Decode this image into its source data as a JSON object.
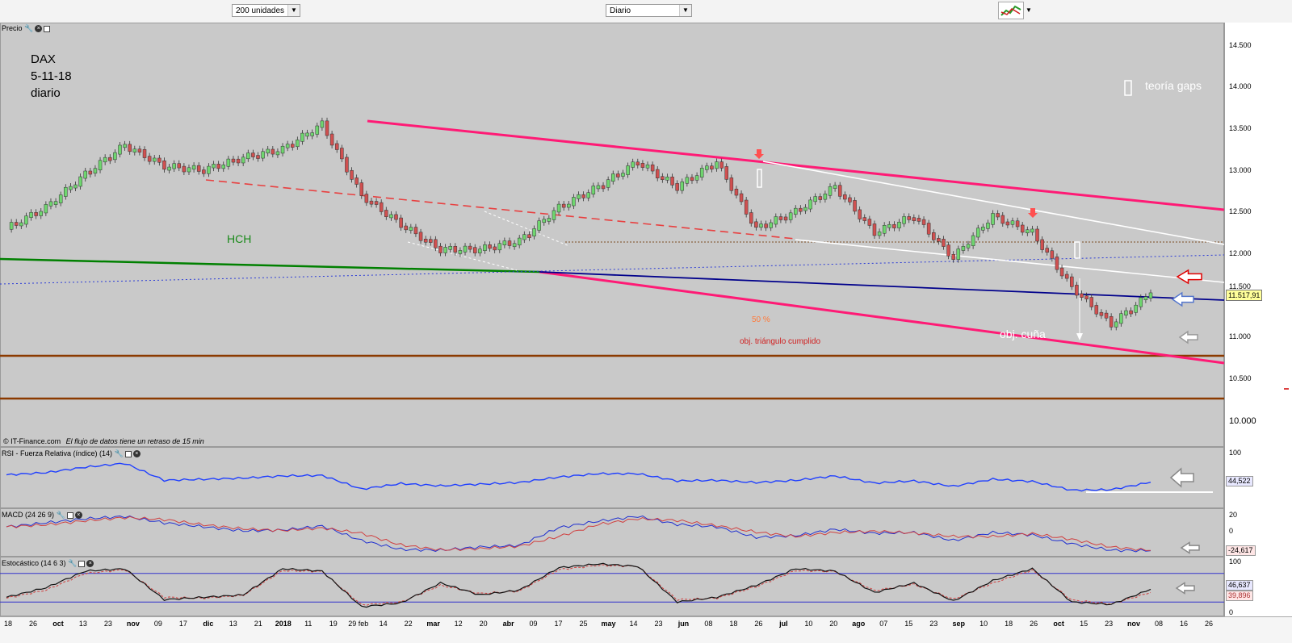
{
  "toolbar": {
    "units_select": "200 unidades",
    "period_select": "Diario"
  },
  "panels": {
    "price": {
      "title": "Precio",
      "ticks": [
        "14.500",
        "14.000",
        "13.500",
        "13.000",
        "12.500",
        "12.000",
        "11.500",
        "11.000",
        "10.500",
        "10.000"
      ],
      "current": "11.517,91"
    },
    "rsi": {
      "title": "RSI - Fuerza Relativa (índice) (14)",
      "ticks": [
        "100"
      ],
      "current": "44,522"
    },
    "macd": {
      "title": "MACD (24 26 9)",
      "ticks": [
        "20",
        "0"
      ],
      "current": "-24,617"
    },
    "stoch": {
      "title": "Estocástico (14 6 3)",
      "ticks": [
        "100",
        "0"
      ],
      "current_k": "46,637",
      "current_d": "39,896"
    }
  },
  "annotations": {
    "title_lines": [
      "DAX",
      "5-11-18",
      "diario"
    ],
    "hch": "HCH",
    "gaps": "teoría gaps",
    "fifty": "50 %",
    "triangle": "obj. triángulo cumplido",
    "wedge": "obj. cuña",
    "source": "© IT-Finance.com",
    "delay": "El flujo de datos tiene un retraso de 15 min"
  },
  "colors": {
    "channel": "#ff1a75",
    "neckline": "#008000",
    "support_blue": "#00008b",
    "dashed_red": "#e84040",
    "orange_lines": "#8b3a00",
    "rsi": "#1f3fff",
    "candle_up": "#6fd66f",
    "candle_down": "#d05050"
  },
  "x_axis": [
    "18",
    "26",
    "oct",
    "13",
    "23",
    "nov",
    "09",
    "17",
    "dic",
    "13",
    "21",
    "2018",
    "11",
    "19",
    "29 feb",
    "14",
    "22",
    "mar",
    "12",
    "20",
    "abr",
    "09",
    "17",
    "25",
    "may",
    "14",
    "23",
    "jun",
    "08",
    "18",
    "26",
    "jul",
    "10",
    "20",
    "ago",
    "07",
    "15",
    "23",
    "sep",
    "10",
    "18",
    "26",
    "oct",
    "15",
    "23",
    "nov",
    "08",
    "16",
    "26"
  ],
  "chart_data": {
    "type": "line",
    "title": "DAX",
    "subtitle": "5-11-18 diario",
    "xlabel": "",
    "ylabel": "",
    "ylim": [
      9800,
      14700
    ],
    "x": [
      "2017-09-18",
      "2017-10-02",
      "2017-10-16",
      "2017-11-01",
      "2017-11-17",
      "2017-12-01",
      "2017-12-18",
      "2018-01-02",
      "2018-01-23",
      "2018-02-05",
      "2018-02-20",
      "2018-03-05",
      "2018-03-20",
      "2018-04-02",
      "2018-04-20",
      "2018-05-02",
      "2018-05-22",
      "2018-06-05",
      "2018-06-14",
      "2018-06-28",
      "2018-07-10",
      "2018-07-26",
      "2018-08-10",
      "2018-08-27",
      "2018-09-10",
      "2018-09-20",
      "2018-10-01",
      "2018-10-11",
      "2018-10-26",
      "2018-11-05"
    ],
    "series": [
      {
        "values": [
          12300,
          12550,
          12950,
          13300,
          13050,
          13000,
          13150,
          13250,
          13550,
          12700,
          12350,
          12050,
          12050,
          12150,
          12550,
          12800,
          13100,
          12800,
          13100,
          12300,
          12500,
          12800,
          12250,
          12450,
          11950,
          12450,
          12250,
          11600,
          11150,
          11520
        ]
      },
      {
        "name": "RSI (14)",
        "values": [
          58,
          62,
          72,
          79,
          48,
          50,
          52,
          56,
          57,
          32,
          42,
          38,
          41,
          44,
          54,
          60,
          60,
          47,
          48,
          44,
          48,
          56,
          43,
          47,
          37,
          50,
          46,
          30,
          31,
          44.52
        ]
      },
      {
        "name": "MACD",
        "values": [
          5,
          10,
          15,
          18,
          10,
          5,
          0,
          1,
          6,
          -12,
          -23,
          -24,
          -20,
          -18,
          4,
          12,
          18,
          8,
          5,
          -8,
          -6,
          2,
          -3,
          -2,
          -12,
          -2,
          -5,
          -16,
          -24,
          -24.62
        ]
      },
      {
        "name": "Estocástico %K",
        "values": [
          30,
          50,
          85,
          90,
          25,
          30,
          35,
          90,
          85,
          10,
          18,
          60,
          35,
          45,
          92,
          100,
          95,
          20,
          30,
          55,
          90,
          85,
          40,
          60,
          22,
          65,
          90,
          20,
          15,
          46.64
        ]
      },
      {
        "name": "Estocástico %D",
        "values": [
          28,
          45,
          80,
          88,
          30,
          28,
          34,
          86,
          84,
          14,
          20,
          55,
          38,
          43,
          88,
          97,
          95,
          25,
          28,
          52,
          86,
          84,
          44,
          57,
          26,
          60,
          87,
          24,
          16,
          39.9
        ]
      }
    ]
  }
}
